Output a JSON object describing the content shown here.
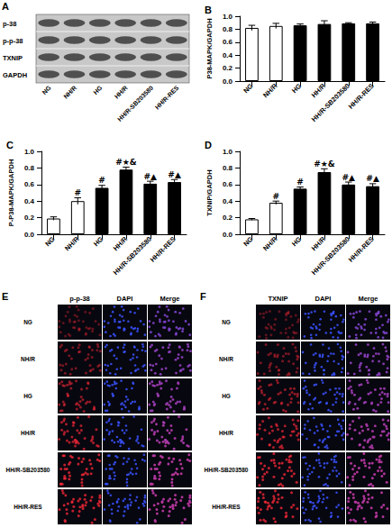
{
  "chart_data": [
    {
      "panel": "B",
      "type": "bar",
      "ylabel": "P38-MAPK/GAPDH",
      "categories": [
        "NG",
        "NH/R",
        "HG",
        "HH/R",
        "HH/R-SB203580",
        "HH/R-RES"
      ],
      "values": [
        0.82,
        0.85,
        0.86,
        0.88,
        0.89,
        0.89
      ],
      "errors": [
        0.04,
        0.04,
        0.02,
        0.05,
        0.01,
        0.02
      ],
      "colors": [
        "#ffffff",
        "#ffffff",
        "#000000",
        "#000000",
        "#000000",
        "#000000"
      ],
      "ylim": [
        0,
        1
      ],
      "yticks": [
        {
          "value": 0,
          "label": "0.0"
        },
        {
          "value": 0.2,
          "label": "0.2"
        },
        {
          "value": 0.4,
          "label": "0.4"
        },
        {
          "value": 0.6,
          "label": "0.6"
        },
        {
          "value": 0.8,
          "label": "0.8"
        },
        {
          "value": 1,
          "label": "1.0"
        }
      ],
      "grid": false
    },
    {
      "panel": "C",
      "type": "bar",
      "ylabel": "P-P38-MAPK/GAPDH",
      "categories": [
        "NG",
        "NH/R",
        "HG",
        "HH/R",
        "HH/R-SB203580",
        "HH/R-RES"
      ],
      "values": [
        0.19,
        0.4,
        0.56,
        0.78,
        0.61,
        0.63
      ],
      "errors": [
        0.02,
        0.04,
        0.03,
        0.03,
        0.03,
        0.03
      ],
      "annotations": [
        null,
        "#",
        "#",
        "#★&",
        "#▲",
        "#▲"
      ],
      "colors": [
        "#ffffff",
        "#ffffff",
        "#000000",
        "#000000",
        "#000000",
        "#000000"
      ],
      "ylim": [
        0,
        1
      ],
      "yticks": [
        {
          "value": 0,
          "label": "0.0"
        },
        {
          "value": 0.2,
          "label": "0.2"
        },
        {
          "value": 0.4,
          "label": "0.4"
        },
        {
          "value": 0.6,
          "label": "0.6"
        },
        {
          "value": 0.8,
          "label": "0.8"
        },
        {
          "value": 1,
          "label": "1.0"
        }
      ],
      "grid": false
    },
    {
      "panel": "D",
      "type": "bar",
      "ylabel": "TXNIP/GAPDH",
      "categories": [
        "NG",
        "NH/R",
        "HG",
        "HH/R",
        "HH/R-SB203580",
        "HH/R-RES"
      ],
      "values": [
        0.18,
        0.38,
        0.55,
        0.75,
        0.6,
        0.58
      ],
      "errors": [
        0.01,
        0.02,
        0.02,
        0.04,
        0.03,
        0.03
      ],
      "annotations": [
        null,
        "#",
        "#",
        "#★&",
        "#▲",
        "#▲"
      ],
      "colors": [
        "#ffffff",
        "#ffffff",
        "#000000",
        "#000000",
        "#000000",
        "#000000"
      ],
      "ylim": [
        0,
        1
      ],
      "yticks": [
        {
          "value": 0,
          "label": "0.0"
        },
        {
          "value": 0.2,
          "label": "0.2"
        },
        {
          "value": 0.4,
          "label": "0.4"
        },
        {
          "value": 0.6,
          "label": "0.6"
        },
        {
          "value": 0.8,
          "label": "0.8"
        },
        {
          "value": 1,
          "label": "1.0"
        }
      ],
      "grid": false
    }
  ],
  "blot": {
    "panel": "A",
    "rows": [
      "p-38",
      "p-p-38",
      "TXNIP",
      "GAPDH"
    ],
    "lanes": [
      "NG",
      "NH/R",
      "HG",
      "HH/R",
      "HH/R-SB203580",
      "HH/R-RES"
    ]
  },
  "images": [
    {
      "panel": "E",
      "columns": [
        "p-p-38",
        "DAPI",
        "Merge"
      ],
      "rows": [
        "NG",
        "NH/R",
        "HG",
        "HH/R",
        "HH/R-SB203580",
        "HH/R-RES"
      ]
    },
    {
      "panel": "F",
      "columns": [
        "TXNIP",
        "DAPI",
        "Merge"
      ],
      "rows": [
        "NG",
        "NH/R",
        "HG",
        "HH/R",
        "HH/R-SB203580",
        "HH/R-RES"
      ]
    }
  ]
}
